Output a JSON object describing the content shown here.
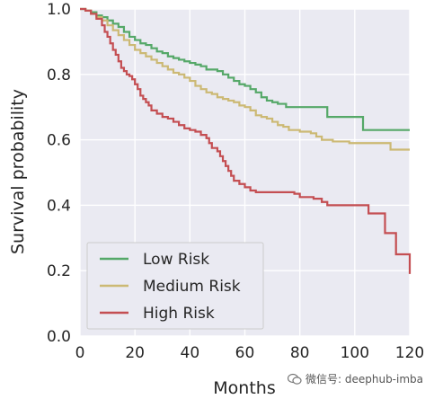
{
  "chart_data": {
    "type": "line",
    "xlabel": "Months",
    "ylabel": "Survival probability",
    "xlim": [
      0,
      120
    ],
    "ylim": [
      0,
      1.0
    ],
    "x_ticks": [
      0,
      20,
      40,
      60,
      80,
      100,
      120
    ],
    "y_ticks": [
      "0.0",
      "0.2",
      "0.4",
      "0.6",
      "0.8",
      "1.0"
    ],
    "grid": true,
    "background": "#eaeaf2",
    "legend_position": "lower-left",
    "series": [
      {
        "name": "Low Risk",
        "color": "#55a868",
        "points": [
          [
            0,
            1.0
          ],
          [
            2,
            0.995
          ],
          [
            4,
            0.99
          ],
          [
            6,
            0.98
          ],
          [
            8,
            0.975
          ],
          [
            10,
            0.965
          ],
          [
            12,
            0.955
          ],
          [
            14,
            0.945
          ],
          [
            16,
            0.93
          ],
          [
            18,
            0.915
          ],
          [
            20,
            0.905
          ],
          [
            22,
            0.895
          ],
          [
            24,
            0.89
          ],
          [
            26,
            0.88
          ],
          [
            28,
            0.87
          ],
          [
            30,
            0.865
          ],
          [
            32,
            0.855
          ],
          [
            34,
            0.85
          ],
          [
            36,
            0.845
          ],
          [
            38,
            0.84
          ],
          [
            40,
            0.835
          ],
          [
            42,
            0.83
          ],
          [
            44,
            0.825
          ],
          [
            46,
            0.815
          ],
          [
            50,
            0.81
          ],
          [
            52,
            0.8
          ],
          [
            54,
            0.79
          ],
          [
            56,
            0.78
          ],
          [
            58,
            0.77
          ],
          [
            60,
            0.765
          ],
          [
            62,
            0.755
          ],
          [
            64,
            0.745
          ],
          [
            66,
            0.73
          ],
          [
            68,
            0.72
          ],
          [
            70,
            0.715
          ],
          [
            72,
            0.71
          ],
          [
            75,
            0.7
          ],
          [
            82,
            0.7
          ],
          [
            90,
            0.7
          ],
          [
            90,
            0.67
          ],
          [
            100,
            0.67
          ],
          [
            103,
            0.67
          ],
          [
            103,
            0.63
          ],
          [
            112,
            0.63
          ],
          [
            120,
            0.63
          ]
        ]
      },
      {
        "name": "Medium Risk",
        "color": "#ccb974",
        "points": [
          [
            0,
            1.0
          ],
          [
            2,
            0.995
          ],
          [
            4,
            0.985
          ],
          [
            6,
            0.975
          ],
          [
            8,
            0.965
          ],
          [
            10,
            0.95
          ],
          [
            12,
            0.935
          ],
          [
            14,
            0.92
          ],
          [
            16,
            0.905
          ],
          [
            18,
            0.89
          ],
          [
            20,
            0.875
          ],
          [
            22,
            0.865
          ],
          [
            24,
            0.855
          ],
          [
            26,
            0.845
          ],
          [
            28,
            0.835
          ],
          [
            30,
            0.825
          ],
          [
            32,
            0.815
          ],
          [
            34,
            0.805
          ],
          [
            36,
            0.8
          ],
          [
            38,
            0.79
          ],
          [
            40,
            0.78
          ],
          [
            42,
            0.765
          ],
          [
            44,
            0.755
          ],
          [
            46,
            0.745
          ],
          [
            48,
            0.74
          ],
          [
            50,
            0.73
          ],
          [
            52,
            0.725
          ],
          [
            54,
            0.72
          ],
          [
            56,
            0.715
          ],
          [
            58,
            0.705
          ],
          [
            60,
            0.7
          ],
          [
            62,
            0.69
          ],
          [
            64,
            0.675
          ],
          [
            66,
            0.67
          ],
          [
            68,
            0.665
          ],
          [
            70,
            0.655
          ],
          [
            72,
            0.645
          ],
          [
            74,
            0.64
          ],
          [
            76,
            0.63
          ],
          [
            80,
            0.625
          ],
          [
            84,
            0.62
          ],
          [
            86,
            0.61
          ],
          [
            88,
            0.6
          ],
          [
            92,
            0.595
          ],
          [
            98,
            0.59
          ],
          [
            105,
            0.59
          ],
          [
            112,
            0.59
          ],
          [
            113,
            0.57
          ],
          [
            120,
            0.57
          ]
        ]
      },
      {
        "name": "High Risk",
        "color": "#c44e52",
        "points": [
          [
            0,
            1.0
          ],
          [
            2,
            0.995
          ],
          [
            4,
            0.985
          ],
          [
            6,
            0.97
          ],
          [
            8,
            0.95
          ],
          [
            9,
            0.93
          ],
          [
            10,
            0.915
          ],
          [
            11,
            0.895
          ],
          [
            12,
            0.875
          ],
          [
            13,
            0.86
          ],
          [
            14,
            0.84
          ],
          [
            15,
            0.82
          ],
          [
            16,
            0.81
          ],
          [
            17,
            0.8
          ],
          [
            18,
            0.795
          ],
          [
            19,
            0.785
          ],
          [
            20,
            0.77
          ],
          [
            21,
            0.755
          ],
          [
            22,
            0.735
          ],
          [
            23,
            0.725
          ],
          [
            24,
            0.715
          ],
          [
            25,
            0.705
          ],
          [
            26,
            0.69
          ],
          [
            28,
            0.68
          ],
          [
            30,
            0.67
          ],
          [
            32,
            0.665
          ],
          [
            34,
            0.655
          ],
          [
            36,
            0.645
          ],
          [
            38,
            0.635
          ],
          [
            40,
            0.63
          ],
          [
            42,
            0.625
          ],
          [
            44,
            0.615
          ],
          [
            46,
            0.605
          ],
          [
            47,
            0.59
          ],
          [
            48,
            0.575
          ],
          [
            50,
            0.565
          ],
          [
            51,
            0.55
          ],
          [
            52,
            0.535
          ],
          [
            53,
            0.52
          ],
          [
            54,
            0.505
          ],
          [
            55,
            0.49
          ],
          [
            56,
            0.475
          ],
          [
            58,
            0.465
          ],
          [
            60,
            0.455
          ],
          [
            62,
            0.445
          ],
          [
            64,
            0.44
          ],
          [
            66,
            0.44
          ],
          [
            72,
            0.44
          ],
          [
            78,
            0.435
          ],
          [
            80,
            0.425
          ],
          [
            85,
            0.42
          ],
          [
            88,
            0.41
          ],
          [
            90,
            0.4
          ],
          [
            95,
            0.4
          ],
          [
            100,
            0.4
          ],
          [
            104,
            0.4
          ],
          [
            105,
            0.375
          ],
          [
            110,
            0.375
          ],
          [
            111,
            0.315
          ],
          [
            114,
            0.315
          ],
          [
            115,
            0.25
          ],
          [
            118,
            0.25
          ],
          [
            120,
            0.19
          ]
        ]
      }
    ]
  },
  "watermark": {
    "text": "微信号: deephub-imba",
    "icon": "wechat-icon"
  }
}
